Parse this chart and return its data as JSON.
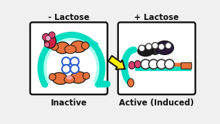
{
  "bg_color": "#f0f0f0",
  "title_minus": "- Lactose",
  "title_plus": "+ Lactose",
  "label_inactive": "Inactive",
  "label_active": "Active (Induced)",
  "box_color": "#ffffff",
  "box_edge": "#111111",
  "arrow_yellow": "#ffee00",
  "arrow_edge": "#111111",
  "cyan": "#00ddc0",
  "orange": "#e8703a",
  "red": "#cc2244",
  "pink": "#d94070",
  "blue": "#2255cc",
  "dark": "#1a1a1a",
  "gray_dark": "#2a2a2a",
  "white": "#ffffff",
  "teal_dna": "#00ccaa"
}
